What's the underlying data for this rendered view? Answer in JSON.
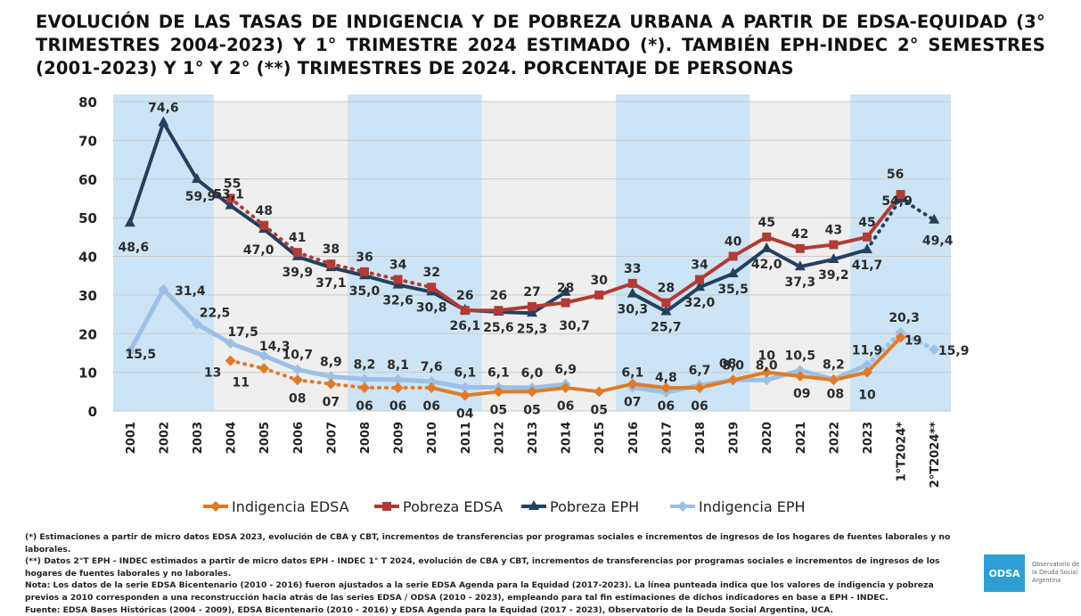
{
  "title": "EVOLUCIÓN DE LAS TASAS DE INDIGENCIA Y DE POBREZA URBANA A PARTIR DE EDSA-EQUIDAD (3° TRIMESTRES 2004-2023) Y 1° TRIMESTRE 2024 ESTIMADO (*). TAMBIÉN EPH-INDEC 2° SEMESTRES (2001-2023) Y 1° Y 2° (**) TRIMESTRES DE 2024. PORCENTAJE DE PERSONAS",
  "notes": [
    "(*) Estimaciones a partir de micro datos EDSA 2023, evolución de CBA y CBT, incrementos de transferencias por programas sociales e incrementos de ingresos de los hogares de fuentes laborales y no laborales.",
    "(**) Datos 2°T EPH - INDEC estimados a partir de micro datos EPH - INDEC 1° T 2024, evolución de CBA y CBT, incrementos de transferencias por programas sociales e incrementos de ingresos de los hogares de fuentes laborales y no laborales.",
    "Nota: Los datos de la serie EDSA Bicentenario (2010 - 2016) fueron ajustados a la serie EDSA Agenda para la Equidad (2017-2023). La línea punteada indica que los valores de indigencia y pobreza previos a 2010 corresponden a una reconstrucción hacia atrás de las series EDSA / ODSA (2010 - 2023), empleando para tal fin estimaciones de dichos indicadores en base a EPH - INDEC.",
    "Fuente: EDSA Bases Históricas (2004 - 2009), EDSA Bicentenario (2010 - 2016) y EDSA Agenda para la Equidad (2017 - 2023), Observatorio de la Deuda Social Argentina, UCA."
  ],
  "logo": {
    "mark": "ODSA",
    "text": "Observatorio de la Deuda Social Argentina"
  },
  "chart_data": {
    "type": "line",
    "categories": [
      "2001",
      "2002",
      "2003",
      "2004",
      "2005",
      "2006",
      "2007",
      "2008",
      "2009",
      "2010",
      "2011",
      "2012",
      "2013",
      "2014",
      "2015",
      "2016",
      "2017",
      "2018",
      "2019",
      "2020",
      "2021",
      "2022",
      "2023",
      "1°T2024*",
      "2°T2024**"
    ],
    "ylim": [
      0,
      80
    ],
    "yticks": [
      0,
      10,
      20,
      30,
      40,
      50,
      60,
      70,
      80
    ],
    "grid": true,
    "legend_position": "bottom",
    "shaded_bands": [
      [
        "2001",
        "2003"
      ],
      [
        "2008",
        "2011"
      ],
      [
        "2016",
        "2019"
      ],
      [
        "2023",
        "2°T2024**"
      ]
    ],
    "colors": {
      "indigencia_edsa": "#e07b28",
      "pobreza_edsa": "#b23b36",
      "pobreza_eph": "#24405f",
      "indigencia_eph": "#9cc0e6",
      "band": "#cce4f5"
    },
    "series": [
      {
        "name": "Indigencia EDSA",
        "key": "indigencia_edsa",
        "values": [
          null,
          null,
          null,
          13,
          11,
          8,
          7,
          6,
          6,
          6,
          4,
          5,
          5,
          6,
          5,
          7,
          6,
          6,
          8,
          10,
          9,
          8,
          10,
          19,
          null
        ],
        "labels": [
          "",
          "",
          "",
          "13",
          "11",
          "08",
          "07",
          "06",
          "06",
          "06",
          "04",
          "05",
          "05",
          "06",
          "05",
          "07",
          "06",
          "06",
          "08",
          "10",
          "09",
          "08",
          "10",
          "19",
          ""
        ],
        "dotted_until": "2010"
      },
      {
        "name": "Pobreza EDSA",
        "key": "pobreza_edsa",
        "values": [
          null,
          null,
          null,
          55,
          48,
          41,
          38,
          36,
          34,
          32,
          26,
          26,
          27,
          28,
          30,
          33,
          28,
          34,
          40,
          45,
          42,
          43,
          45,
          56,
          null
        ],
        "labels": [
          "",
          "",
          "",
          "55",
          "48",
          "41",
          "38",
          "36",
          "34",
          "32",
          "26",
          "26",
          "27",
          "28",
          "30",
          "33",
          "28",
          "34",
          "40",
          "45",
          "42",
          "43",
          "45",
          "56",
          ""
        ],
        "dotted_until": "2010"
      },
      {
        "name": "Pobreza EPH",
        "key": "pobreza_eph",
        "values": [
          48.6,
          74.6,
          59.9,
          53.1,
          47.0,
          39.9,
          37.1,
          35.0,
          32.6,
          30.8,
          26.1,
          25.6,
          25.3,
          30.7,
          null,
          30.3,
          25.7,
          32.0,
          35.5,
          42.0,
          37.3,
          39.2,
          41.7,
          54.9,
          49.4
        ],
        "labels": [
          "48,6",
          "74,6",
          "59,9",
          "53,1",
          "47,0",
          "39,9",
          "37,1",
          "35,0",
          "32,6",
          "30,8",
          "26,1",
          "25,6",
          "25,3",
          "30,7",
          "",
          "30,3",
          "25,7",
          "32,0",
          "35,5",
          "42,0",
          "37,3",
          "39,2",
          "41,7",
          "54,9",
          "49,4"
        ],
        "dotted_from": "1°T2024*"
      },
      {
        "name": "Indigencia EPH",
        "key": "indigencia_eph",
        "values": [
          15.5,
          31.4,
          22.5,
          17.5,
          14.3,
          10.7,
          8.9,
          8.2,
          8.1,
          7.6,
          6.1,
          6.1,
          6.0,
          6.9,
          null,
          6.1,
          4.8,
          6.7,
          8.0,
          8.0,
          10.5,
          8.2,
          11.9,
          20.3,
          15.9
        ],
        "labels": [
          "15,5",
          "31,4",
          "22,5",
          "17,5",
          "14,3",
          "10,7",
          "8,9",
          "8,2",
          "8,1",
          "7,6",
          "6,1",
          "6,1",
          "6,0",
          "6,9",
          "",
          "6,1",
          "4,8",
          "6,7",
          "8,0",
          "8,0",
          "10,5",
          "8,2",
          "11,9",
          "20,3",
          "15,9"
        ],
        "dotted_from": "1°T2024*"
      }
    ]
  }
}
